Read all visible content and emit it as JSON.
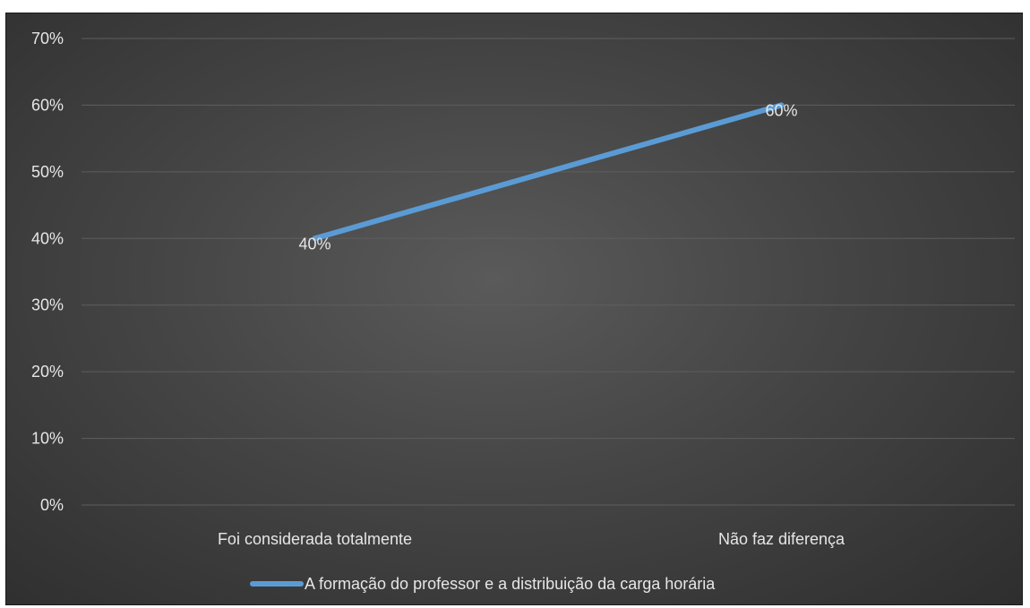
{
  "chart_data": {
    "type": "line",
    "categories": [
      "Foi considerada totalmente",
      "Não faz diferença"
    ],
    "series": [
      {
        "name": "A formação do professor e a distribuição da carga horária",
        "values": [
          40,
          60
        ],
        "color": "#5b9bd5"
      }
    ],
    "data_labels": [
      "40%",
      "60%"
    ],
    "ylim": [
      0,
      70
    ],
    "yticks": [
      0,
      10,
      20,
      30,
      40,
      50,
      60,
      70
    ],
    "ytick_labels": [
      "0%",
      "10%",
      "20%",
      "30%",
      "40%",
      "50%",
      "60%",
      "70%"
    ],
    "grid": true,
    "legend_position": "bottom",
    "background": "#404040",
    "gridline_color": "#5e5e5e",
    "text_color": "#e6e6e6"
  }
}
